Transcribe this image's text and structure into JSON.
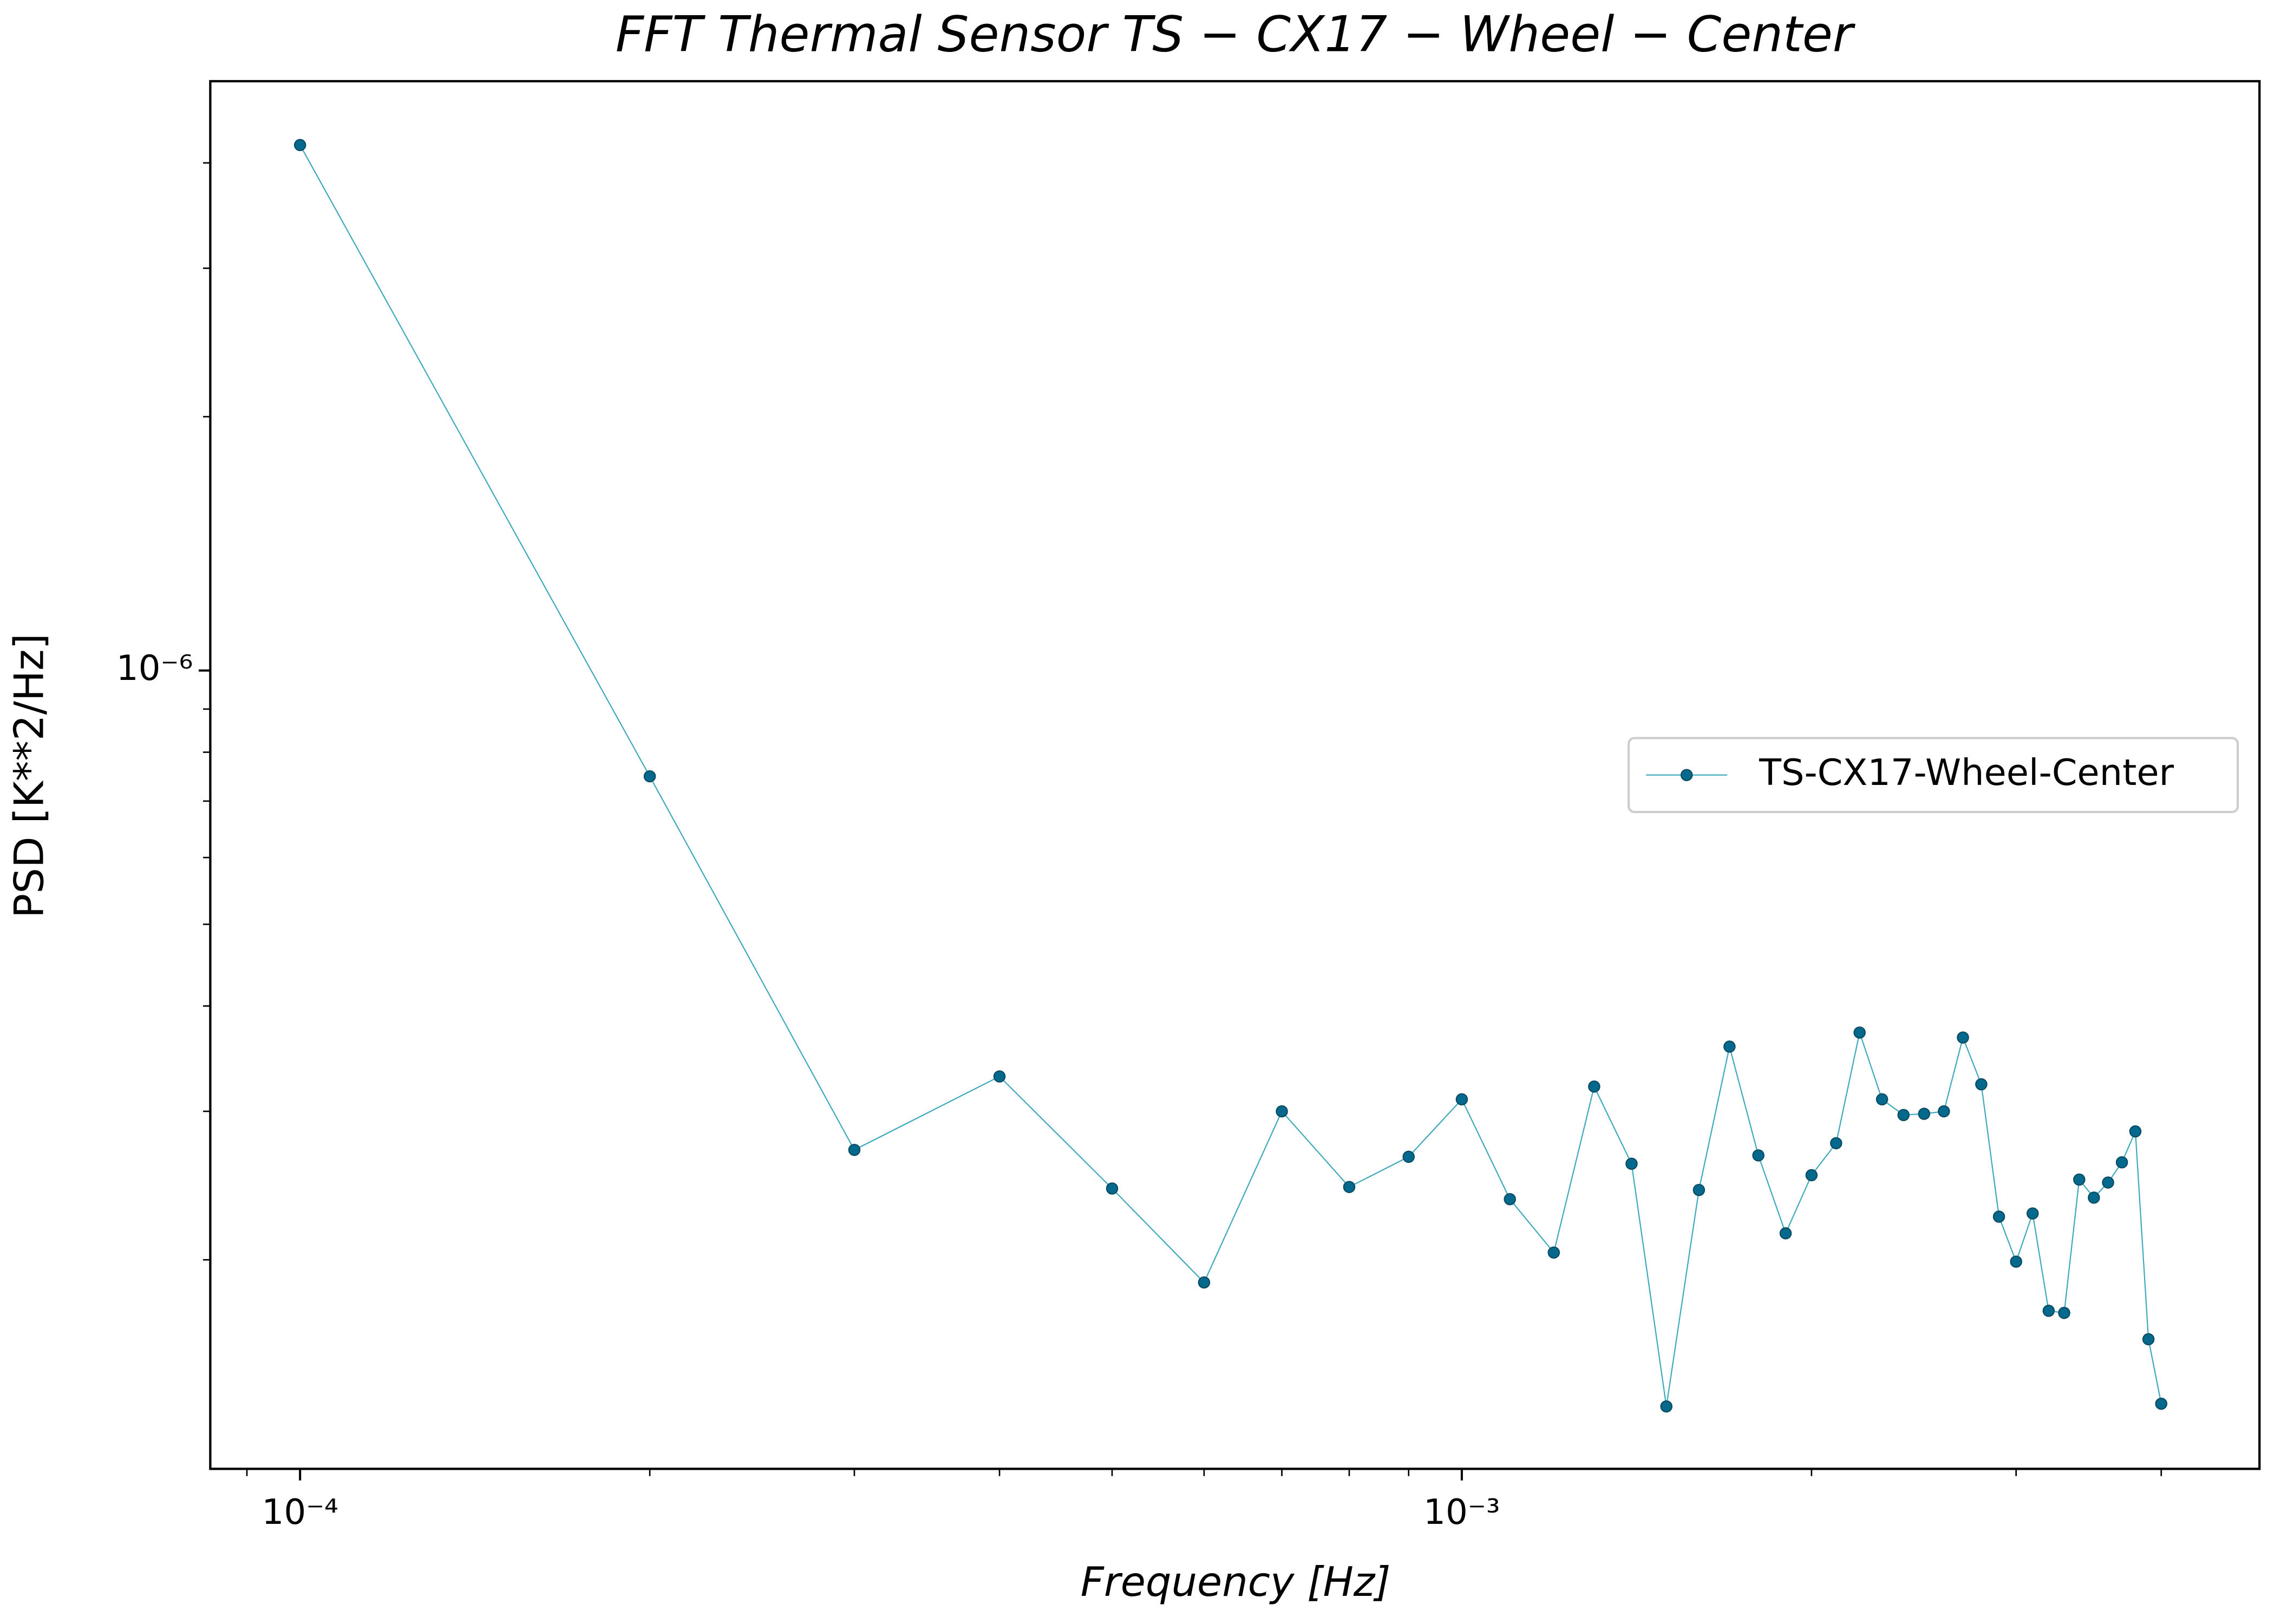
{
  "chart_data": {
    "type": "line",
    "title": "FFT Thermal Sensor TS − CX17 − Wheel − Center",
    "xlabel": "Frequency [Hz]",
    "ylabel": "PSD [K**2/Hz]",
    "xscale": "log",
    "yscale": "log",
    "xlim": [
      8.37e-05,
      0.00486
    ],
    "ylim": [
      1.13e-07,
      5e-06
    ],
    "xticks": [
      {
        "value": 0.0001,
        "label": "10⁻⁴"
      },
      {
        "value": 0.001,
        "label": "10⁻³"
      }
    ],
    "x_minor_ticks": [
      9e-05,
      0.0002,
      0.0003,
      0.0004,
      0.0005,
      0.0006,
      0.0007,
      0.0008,
      0.0009,
      0.002,
      0.003,
      0.004
    ],
    "yticks": [
      {
        "value": 1e-06,
        "label": "10⁻⁶"
      }
    ],
    "y_minor_ticks": [
      2e-07,
      3e-07,
      4e-07,
      5e-07,
      6e-07,
      7e-07,
      8e-07,
      9e-07,
      2e-06,
      3e-06,
      4e-06
    ],
    "grid": false,
    "legend": "center right",
    "x": [
      0.0001,
      0.0002,
      0.0003,
      0.0004,
      0.0005,
      0.0006,
      0.0007,
      0.0008,
      0.0009,
      0.001,
      0.0011,
      0.0012,
      0.0013,
      0.0014,
      0.0015,
      0.0016,
      0.0017,
      0.0018,
      0.0019,
      0.002,
      0.0021,
      0.0022,
      0.0023,
      0.0024,
      0.0025,
      0.0026,
      0.0027,
      0.0028,
      0.0029,
      0.003,
      0.0031,
      0.0032,
      0.0033,
      0.0034,
      0.0035,
      0.0036,
      0.0037,
      0.0038,
      0.0039,
      0.004
    ],
    "series": [
      {
        "name": "TS-CX17-Wheel-Center",
        "color": "#3aa8bb",
        "marker_color": "#04698c",
        "values": [
          4.2e-06,
          7.49e-07,
          2.7e-07,
          3.3e-07,
          2.43e-07,
          1.88e-07,
          3e-07,
          2.44e-07,
          2.65e-07,
          3.1e-07,
          2.36e-07,
          2.04e-07,
          3.21e-07,
          2.6e-07,
          1.34e-07,
          2.42e-07,
          3.58e-07,
          2.66e-07,
          2.15e-07,
          2.52e-07,
          2.75e-07,
          3.72e-07,
          3.1e-07,
          2.97e-07,
          2.98e-07,
          3e-07,
          3.67e-07,
          3.23e-07,
          2.25e-07,
          1.99e-07,
          2.27e-07,
          1.74e-07,
          1.73e-07,
          2.49e-07,
          2.37e-07,
          2.47e-07,
          2.61e-07,
          2.84e-07,
          1.61e-07,
          1.35e-07
        ]
      }
    ]
  }
}
